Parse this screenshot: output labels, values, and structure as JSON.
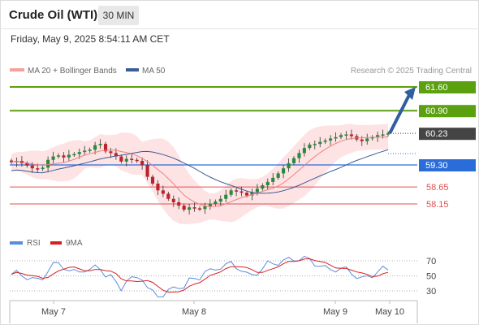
{
  "header": {
    "title": "Crude Oil (WTI)",
    "interval": "30 MIN",
    "datetime": "Friday, May 9, 2025 8:54:11 AM CET"
  },
  "legend": {
    "ma20": "MA 20 + Bollinger Bands",
    "ma50": "MA 50",
    "rsi": "RSI",
    "ma9": "9MA",
    "source": "Research © 2025 Trading Central"
  },
  "colors": {
    "up_level": "#5aa00f",
    "pivot": "#2a6dd9",
    "support": "#e05050",
    "bollinger_fill": "#fde3e3",
    "ma20": "#f08080",
    "ma50": "#3b5b99",
    "arrow": "#2f5f9e",
    "candle_up": "#2a8a3a",
    "candle_down": "#c0202a",
    "rsi_line": "#5b8ddd",
    "rsi_ma": "#d82020"
  },
  "chart_data": [
    {
      "type": "candlestick",
      "x_ticks": [
        "May 7",
        "May 8",
        "May 9",
        "May 10"
      ],
      "levels": [
        {
          "value": 61.6,
          "label": "61.60",
          "role": "resistance"
        },
        {
          "value": 60.9,
          "label": "60.90",
          "role": "resistance"
        },
        {
          "value": 59.3,
          "label": "59.30",
          "role": "pivot"
        },
        {
          "value": 58.65,
          "label": "58.65",
          "role": "support"
        },
        {
          "value": 58.15,
          "label": "58.15",
          "role": "support"
        }
      ],
      "last_price": {
        "value": 60.23,
        "label": "60.23"
      },
      "target_arrow": {
        "from": 60.23,
        "to": 61.6
      },
      "closes": [
        59.38,
        59.42,
        59.35,
        59.28,
        59.2,
        59.18,
        59.22,
        59.45,
        59.55,
        59.58,
        59.52,
        59.6,
        59.62,
        59.68,
        59.72,
        59.75,
        59.88,
        59.92,
        59.7,
        59.65,
        59.55,
        59.4,
        59.48,
        59.45,
        59.42,
        59.3,
        58.95,
        58.75,
        58.55,
        58.45,
        58.3,
        58.2,
        58.1,
        57.98,
        58.05,
        58.02,
        58.0,
        58.08,
        58.15,
        58.22,
        58.3,
        58.42,
        58.55,
        58.52,
        58.48,
        58.4,
        58.5,
        58.6,
        58.7,
        58.8,
        58.92,
        59.05,
        59.2,
        59.35,
        59.5,
        59.65,
        59.8,
        59.9,
        59.92,
        59.98,
        60.02,
        60.08,
        60.12,
        60.18,
        60.2,
        60.15,
        60.05,
        60.0,
        60.08,
        60.12,
        60.18,
        60.2,
        60.23
      ]
    },
    {
      "type": "line",
      "name": "RSI",
      "y_ticks": [
        70,
        50,
        30
      ],
      "ylim": [
        20,
        80
      ]
    }
  ]
}
